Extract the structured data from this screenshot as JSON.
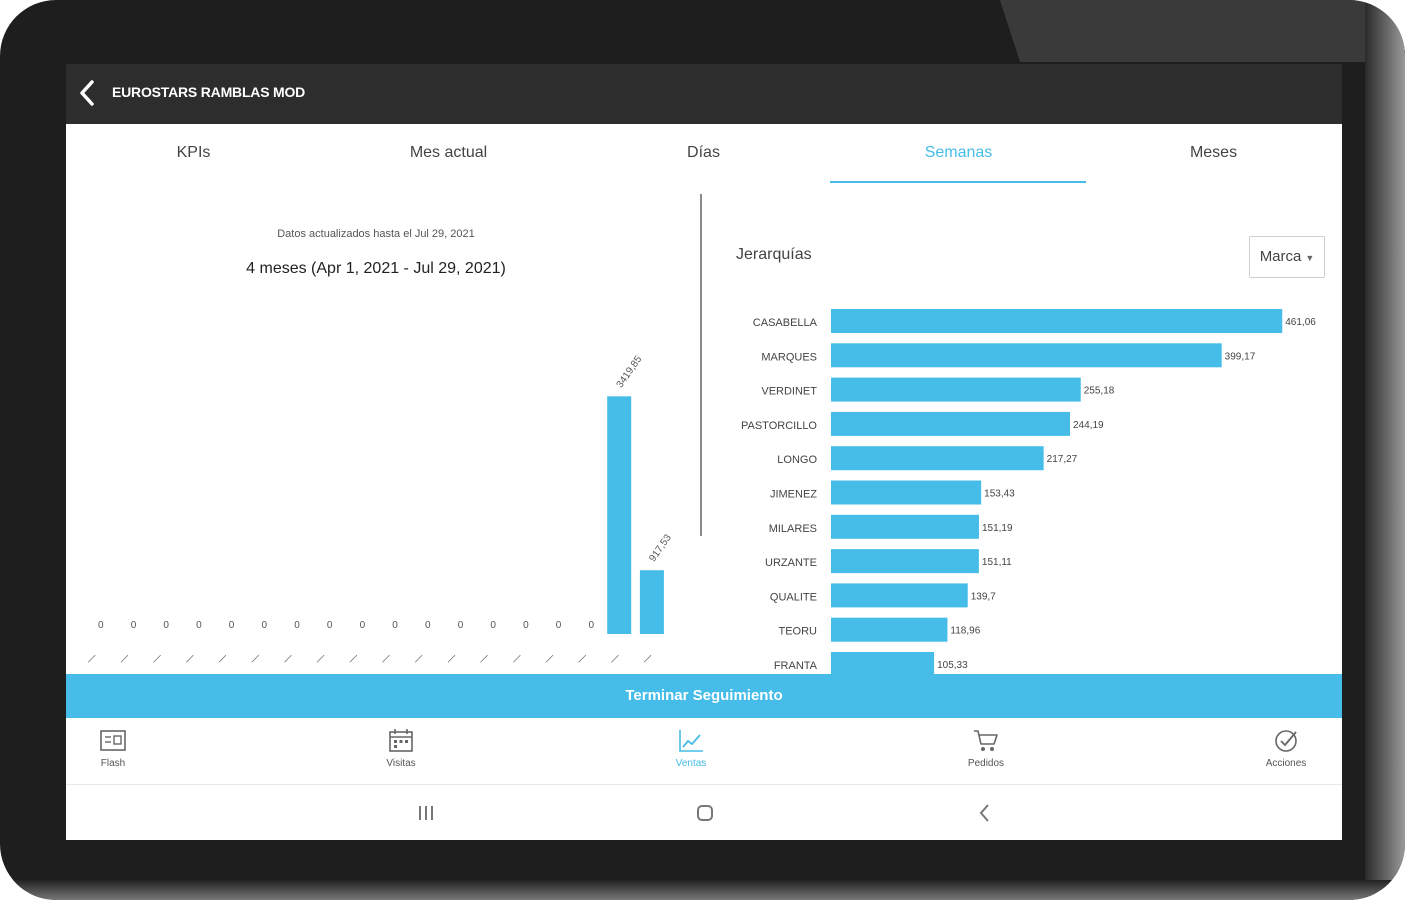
{
  "app": {
    "title": "EUROSTARS RAMBLAS MOD"
  },
  "tabs": [
    {
      "label": "KPIs"
    },
    {
      "label": "Mes actual"
    },
    {
      "label": "Días"
    },
    {
      "label": "Semanas",
      "active": true
    },
    {
      "label": "Meses"
    }
  ],
  "left_panel": {
    "updated_text": "Datos actualizados hasta el Jul 29, 2021",
    "range_text": "4 meses  (Apr 1, 2021 - Jul 29, 2021)"
  },
  "right_panel": {
    "title": "Jerarquías",
    "dropdown_value": "Marca"
  },
  "action_button": "Terminar Seguimiento",
  "bottom_nav": [
    {
      "label": "Flash",
      "icon": "flash-card-icon"
    },
    {
      "label": "Visitas",
      "icon": "calendar-icon"
    },
    {
      "label": "Ventas",
      "icon": "line-chart-icon",
      "active": true
    },
    {
      "label": "Pedidos",
      "icon": "cart-icon"
    },
    {
      "label": "Acciones",
      "icon": "check-circle-icon"
    }
  ],
  "colors": {
    "accent": "#45bde8",
    "appbar": "#2d2d2d"
  },
  "chart_data": [
    {
      "type": "bar",
      "title": "",
      "categories": [
        "",
        "",
        "",
        "",
        "",
        "",
        "",
        "",
        "",
        "",
        "",
        "",
        "",
        "",
        "",
        "",
        "",
        ""
      ],
      "values": [
        0,
        0,
        0,
        0,
        0,
        0,
        0,
        0,
        0,
        0,
        0,
        0,
        0,
        0,
        0,
        0,
        3419.85,
        917.53
      ],
      "value_labels": [
        "0",
        "0",
        "0",
        "0",
        "0",
        "0",
        "0",
        "0",
        "0",
        "0",
        "0",
        "0",
        "0",
        "0",
        "0",
        "0",
        "3419,85",
        "917,53"
      ],
      "ylim": [
        0,
        4000
      ]
    },
    {
      "type": "bar",
      "orientation": "horizontal",
      "title": "Jerarquías",
      "categories": [
        "CASABELLA",
        "MARQUES",
        "VERDINET",
        "PASTORCILLO",
        "LONGO",
        "JIMENEZ",
        "MILARES",
        "URZANTE",
        "QUALITE",
        "TEORU",
        "FRANTA"
      ],
      "values": [
        461.06,
        399.17,
        255.18,
        244.19,
        217.27,
        153.43,
        151.19,
        151.11,
        139.7,
        118.96,
        105.33
      ],
      "value_labels": [
        "461,06",
        "399,17",
        "255,18",
        "244,19",
        "217,27",
        "153,43",
        "151,19",
        "151,11",
        "139,7",
        "118,96",
        "105,33"
      ],
      "xlim": [
        0,
        470
      ]
    }
  ]
}
